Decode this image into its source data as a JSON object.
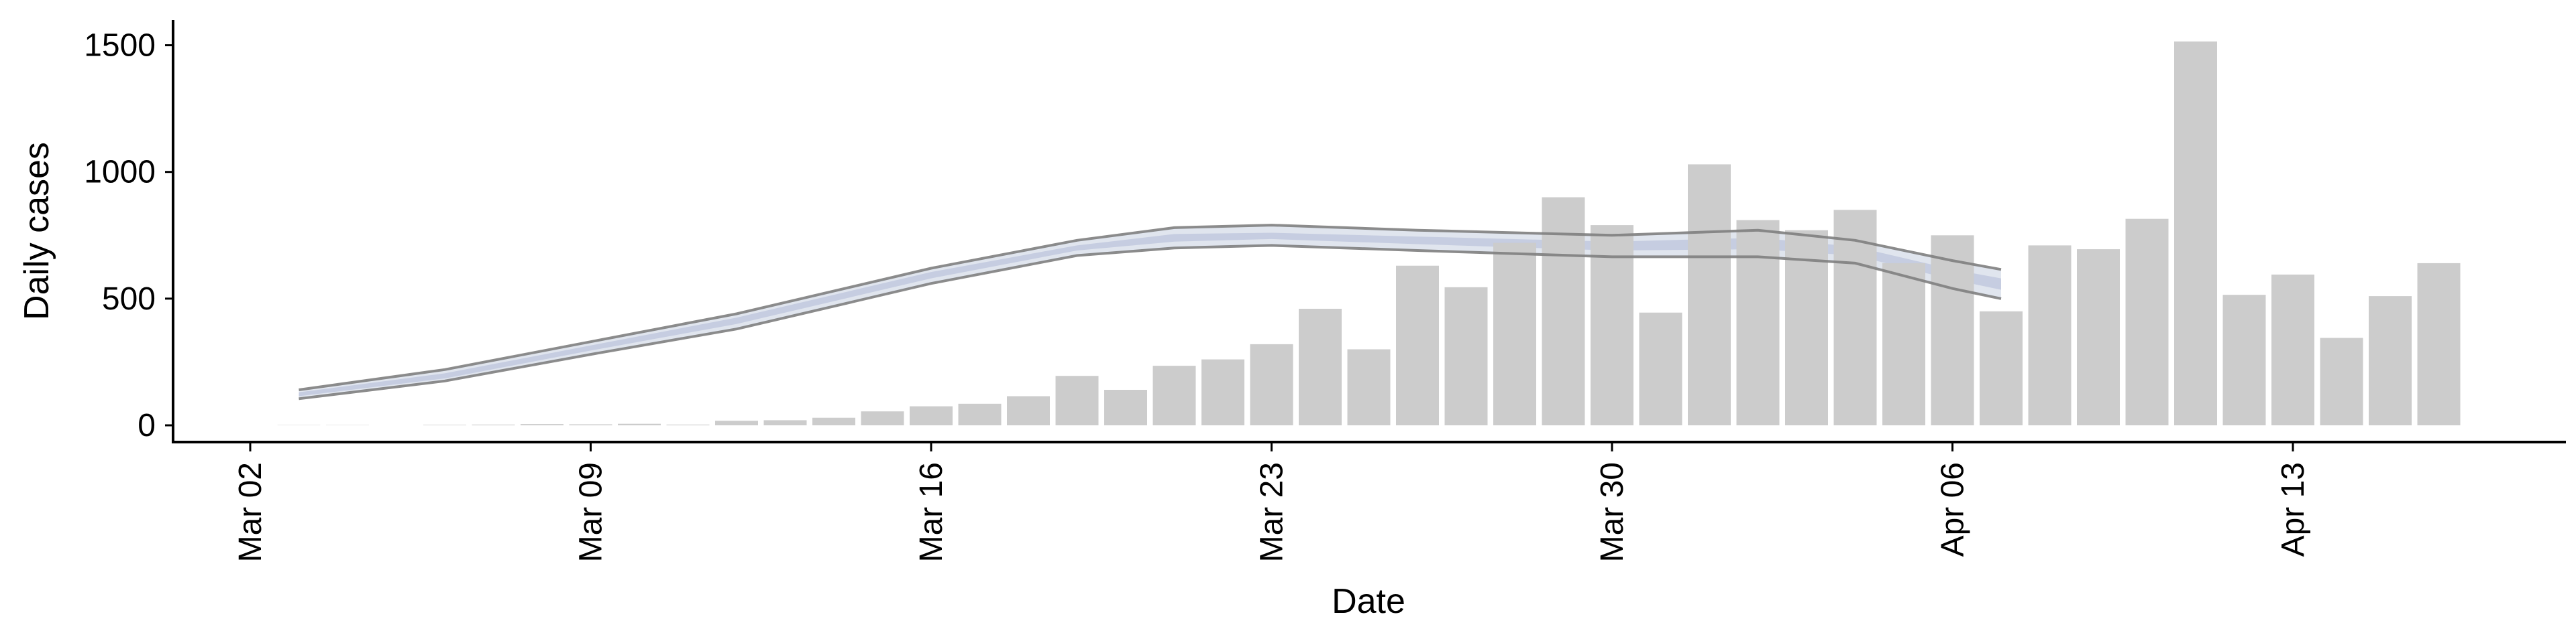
{
  "chart_data": {
    "type": "bar",
    "title": "",
    "xlabel": "Date",
    "ylabel": "Daily cases",
    "ylim": [
      -70,
      1600
    ],
    "grid": false,
    "legend": "none",
    "x_start": "2020-03-02",
    "x_ticks": [
      {
        "date": "2020-03-02",
        "label": "Mar 02"
      },
      {
        "date": "2020-03-09",
        "label": "Mar 09"
      },
      {
        "date": "2020-03-16",
        "label": "Mar 16"
      },
      {
        "date": "2020-03-23",
        "label": "Mar 23"
      },
      {
        "date": "2020-03-30",
        "label": "Mar 30"
      },
      {
        "date": "2020-04-06",
        "label": "Apr 06"
      },
      {
        "date": "2020-04-13",
        "label": "Apr 13"
      }
    ],
    "y_ticks": [
      0,
      500,
      1000,
      1500
    ],
    "colors": {
      "bars": "#cccccc",
      "band_outer": "#dde2ec",
      "band_inner": "#c4cbdf",
      "band_edge": "#7f7f7f"
    },
    "bars": {
      "dates": [
        "2020-03-03",
        "2020-03-04",
        "2020-03-05",
        "2020-03-06",
        "2020-03-07",
        "2020-03-08",
        "2020-03-09",
        "2020-03-10",
        "2020-03-11",
        "2020-03-12",
        "2020-03-13",
        "2020-03-14",
        "2020-03-15",
        "2020-03-16",
        "2020-03-17",
        "2020-03-18",
        "2020-03-19",
        "2020-03-20",
        "2020-03-21",
        "2020-03-22",
        "2020-03-23",
        "2020-03-24",
        "2020-03-25",
        "2020-03-26",
        "2020-03-27",
        "2020-03-28",
        "2020-03-29",
        "2020-03-30",
        "2020-03-31",
        "2020-04-01",
        "2020-04-02",
        "2020-04-03",
        "2020-04-04",
        "2020-04-05",
        "2020-04-06",
        "2020-04-07",
        "2020-04-08",
        "2020-04-09",
        "2020-04-10",
        "2020-04-11",
        "2020-04-12",
        "2020-04-13",
        "2020-04-14",
        "2020-04-15",
        "2020-04-16"
      ],
      "values": [
        1,
        1,
        0,
        2,
        3,
        5,
        4,
        6,
        3,
        18,
        20,
        30,
        55,
        75,
        85,
        115,
        195,
        140,
        235,
        260,
        320,
        460,
        300,
        630,
        545,
        720,
        900,
        790,
        445,
        1030,
        810,
        770,
        850,
        640,
        750,
        450,
        710,
        695,
        815,
        1515,
        515,
        595,
        345,
        510,
        640
      ]
    },
    "series": [
      {
        "band": "outer",
        "dates": [
          "2020-03-03",
          "2020-03-06",
          "2020-03-09",
          "2020-03-12",
          "2020-03-16",
          "2020-03-19",
          "2020-03-21",
          "2020-03-23",
          "2020-03-26",
          "2020-03-30",
          "2020-04-02",
          "2020-04-04",
          "2020-04-06",
          "2020-04-07"
        ],
        "upper": [
          140,
          220,
          330,
          440,
          620,
          730,
          780,
          790,
          770,
          750,
          770,
          730,
          650,
          615
        ],
        "lower": [
          105,
          175,
          280,
          380,
          560,
          670,
          700,
          710,
          690,
          665,
          665,
          640,
          540,
          500
        ]
      },
      {
        "band": "inner",
        "dates": [
          "2020-03-03",
          "2020-03-06",
          "2020-03-09",
          "2020-03-12",
          "2020-03-16",
          "2020-03-19",
          "2020-03-21",
          "2020-03-23",
          "2020-03-26",
          "2020-03-30",
          "2020-04-02",
          "2020-04-04",
          "2020-04-06",
          "2020-04-07"
        ],
        "upper": [
          130,
          205,
          315,
          425,
          605,
          710,
          755,
          760,
          745,
          725,
          740,
          705,
          615,
          580
        ],
        "lower": [
          115,
          185,
          295,
          400,
          580,
          690,
          725,
          735,
          715,
          690,
          695,
          670,
          575,
          535
        ]
      }
    ]
  }
}
